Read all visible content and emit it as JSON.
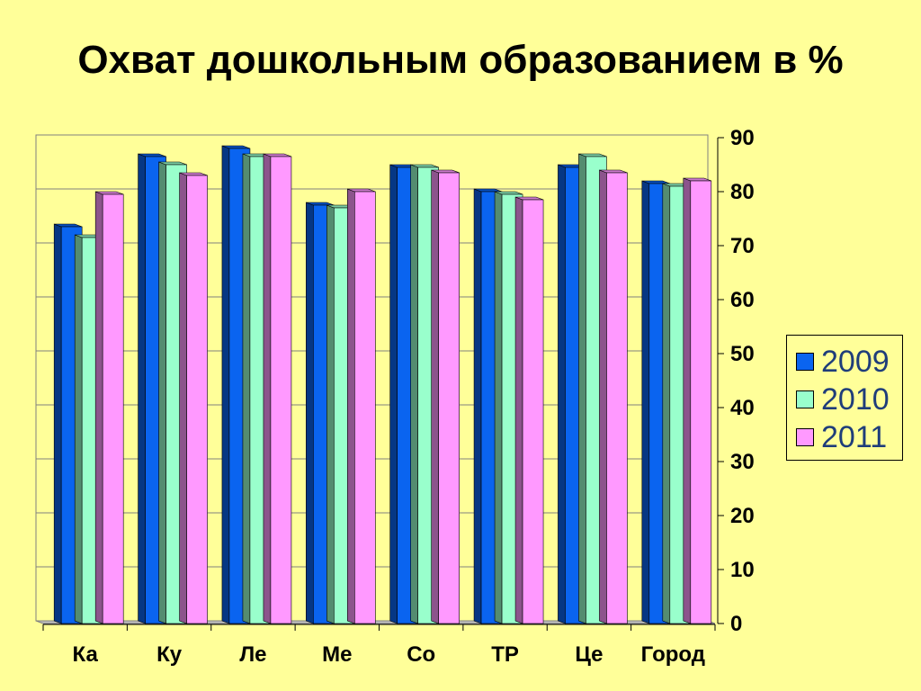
{
  "chart_data": {
    "type": "bar",
    "title": "Охват дошкольным образованием в %",
    "categories": [
      "Ка",
      "Ку",
      "Ле",
      "Ме",
      "Со",
      "ТР",
      "Це",
      "Город"
    ],
    "series": [
      {
        "name": "2009",
        "color": "#0A64F0",
        "values": [
          73.5,
          86.5,
          88,
          77.5,
          84.5,
          80,
          84.5,
          81.5
        ]
      },
      {
        "name": "2010",
        "color": "#99FFCC",
        "values": [
          71.5,
          85,
          86.5,
          77,
          84.5,
          79.5,
          86.5,
          81
        ]
      },
      {
        "name": "2011",
        "color": "#FF99FF",
        "values": [
          79.5,
          83,
          86.5,
          80,
          83.5,
          78.5,
          83.5,
          82
        ]
      }
    ],
    "ylim": [
      0,
      90
    ],
    "yticks": [
      "0",
      "10",
      "20",
      "30",
      "40",
      "50",
      "60",
      "70",
      "80",
      "90"
    ],
    "grid": true,
    "legend_position": "right"
  }
}
